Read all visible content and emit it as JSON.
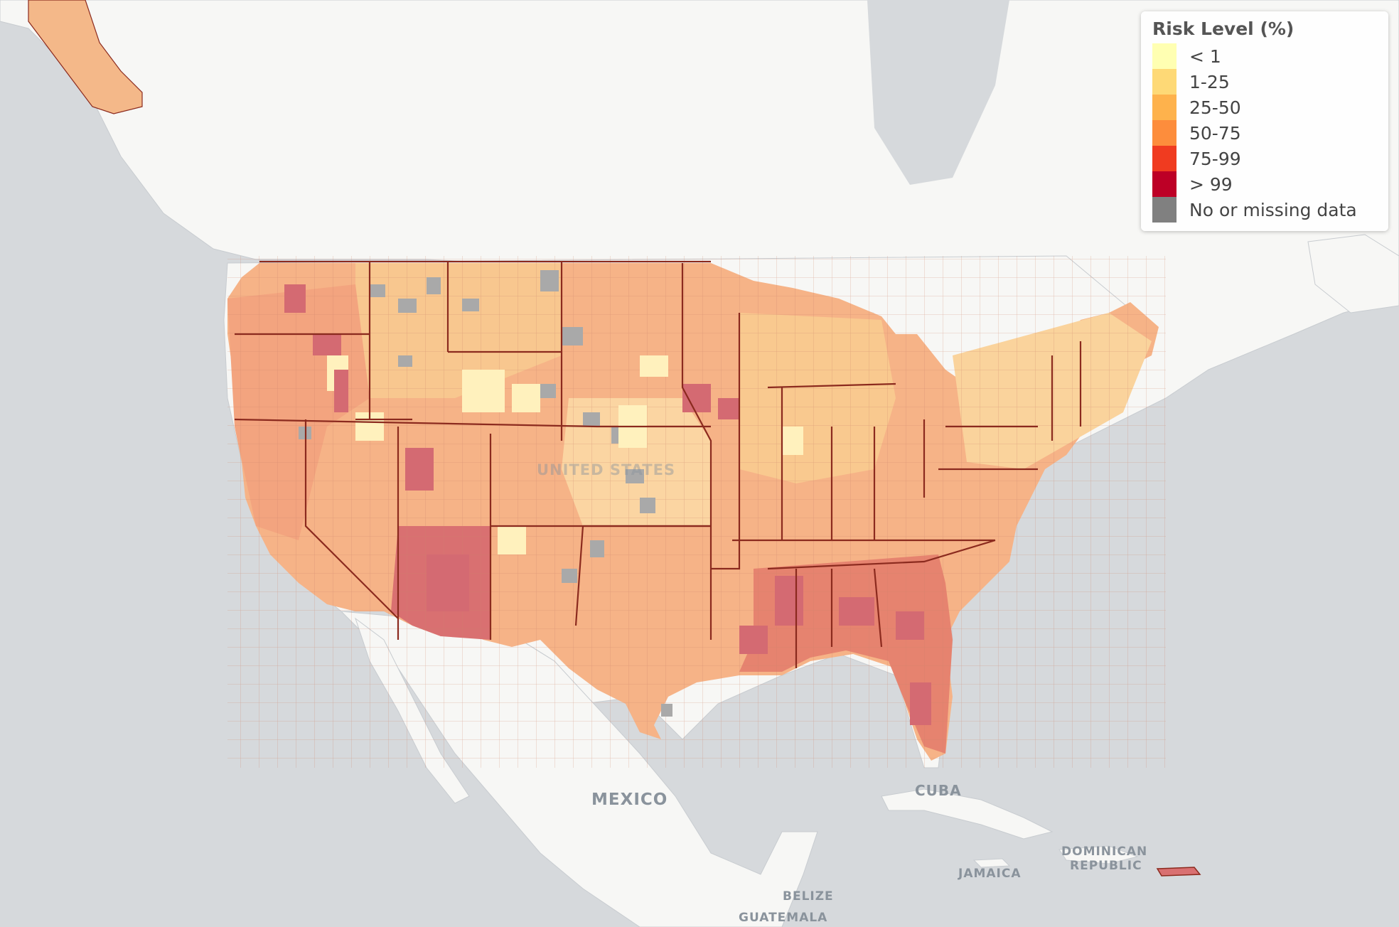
{
  "legend": {
    "title": "Risk Level (%)",
    "items": [
      {
        "label": "< 1",
        "color": "#ffffb2"
      },
      {
        "label": "1-25",
        "color": "#fed976"
      },
      {
        "label": "25-50",
        "color": "#feb24c"
      },
      {
        "label": "50-75",
        "color": "#fd8d3c"
      },
      {
        "label": "75-99",
        "color": "#f03b20"
      },
      {
        "label": "> 99",
        "color": "#bd0026"
      },
      {
        "label": "No or missing data",
        "color": "#808080"
      }
    ]
  },
  "map_labels": {
    "us": "UNITED STATES",
    "mexico": "MEXICO",
    "cuba": "CUBA",
    "jamaica": "JAMAICA",
    "dominican_1": "DOMINICAN",
    "dominican_2": "REPUBLIC",
    "belize": "BELIZE",
    "guatemala": "GUATEMALA"
  },
  "colors": {
    "ocean": "#d6d9dc",
    "land": "#f7f7f5",
    "state_border": "#8b2a1e"
  }
}
